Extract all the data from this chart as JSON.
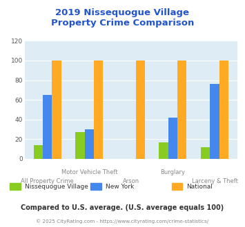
{
  "title": "2019 Nissequogue Village\nProperty Crime Comparison",
  "categories": [
    "All Property Crime",
    "Motor Vehicle Theft",
    "Arson",
    "Burglary",
    "Larceny & Theft"
  ],
  "series": {
    "Nissequogue Village": [
      14,
      27,
      0,
      17,
      12
    ],
    "New York": [
      65,
      30,
      0,
      42,
      76
    ],
    "National": [
      100,
      100,
      100,
      100,
      100
    ]
  },
  "colors": {
    "Nissequogue Village": "#88cc22",
    "New York": "#4488ee",
    "National": "#ffaa22"
  },
  "ylim": [
    0,
    120
  ],
  "yticks": [
    0,
    20,
    40,
    60,
    80,
    100,
    120
  ],
  "title_color": "#2255cc",
  "title_fontsize": 9.5,
  "plot_bg_color": "#deedf5",
  "footer_text": "Compared to U.S. average. (U.S. average equals 100)",
  "credit_text": "© 2025 CityRating.com - https://www.cityrating.com/crime-statistics/",
  "footer_color": "#333333",
  "credit_color": "#888888",
  "bar_width": 0.22
}
